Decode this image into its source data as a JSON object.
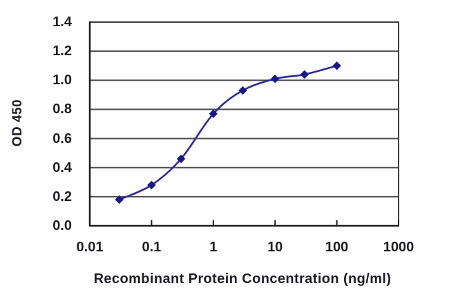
{
  "chart_data": {
    "type": "line",
    "title": "",
    "xlabel": "Recombinant Protein Concentration (ng/ml)",
    "ylabel": "OD 450",
    "x_scale": "log",
    "x": [
      0.03,
      0.1,
      0.3,
      1,
      3,
      10,
      30,
      100
    ],
    "y": [
      0.18,
      0.28,
      0.46,
      0.77,
      0.93,
      1.01,
      1.04,
      1.1
    ],
    "xlim": [
      0.01,
      1000
    ],
    "ylim": [
      0.0,
      1.4
    ],
    "xticks": [
      "0.01",
      "0.1",
      "1",
      "10",
      "100",
      "1000"
    ],
    "yticks": [
      "0.0",
      "0.2",
      "0.4",
      "0.6",
      "0.8",
      "1.0",
      "1.2",
      "1.4"
    ],
    "grid": "horizontal",
    "legend": "none",
    "marker": "diamond",
    "line_style": "smooth",
    "colors": {
      "series_line": "#2a2a9c",
      "marker_fill": "#191985",
      "gridline": "#4d4d4d",
      "axis": "#1c1c1c",
      "frame": "#3c3c3c",
      "text": "#1d1d26",
      "background": "#fefefe"
    }
  }
}
